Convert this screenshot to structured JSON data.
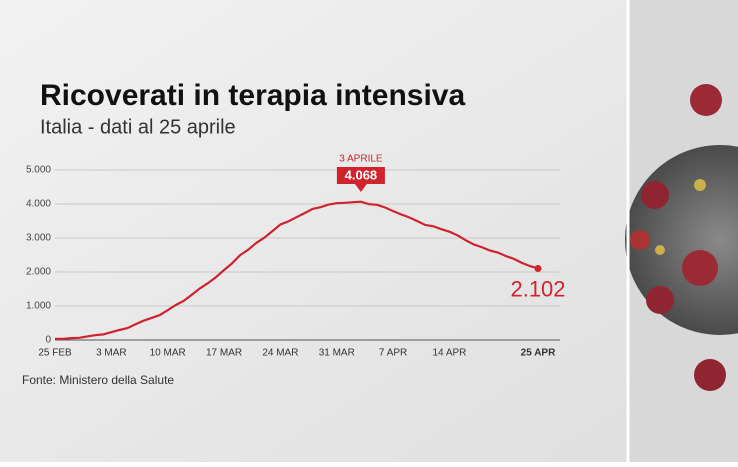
{
  "chart_data": {
    "type": "line",
    "title": "Ricoverati in terapia intensiva",
    "subtitle": "Italia - dati al 25 aprile",
    "source": "Fonte: Ministero della Salute",
    "annotation": "3 APRILE",
    "categories": [
      "25 FEB",
      null,
      null,
      null,
      null,
      null,
      null,
      "3 MAR",
      null,
      null,
      null,
      null,
      null,
      null,
      "10 MAR",
      null,
      null,
      null,
      null,
      null,
      null,
      "17 MAR",
      null,
      null,
      null,
      null,
      null,
      null,
      "24 MAR",
      null,
      null,
      null,
      null,
      null,
      null,
      "31 MAR",
      null,
      null,
      null,
      null,
      null,
      null,
      "7 APR",
      null,
      null,
      null,
      null,
      null,
      null,
      "14 APR",
      null,
      null,
      null,
      null,
      null,
      null,
      null,
      null,
      null,
      null,
      "25 APR"
    ],
    "values": [
      35,
      36,
      56,
      64,
      105,
      140,
      166,
      229,
      295,
      351,
      462,
      567,
      650,
      733,
      877,
      1028,
      1153,
      1328,
      1518,
      1672,
      1851,
      2060,
      2257,
      2498,
      2655,
      2857,
      3009,
      3204,
      3396,
      3489,
      3612,
      3732,
      3856,
      3906,
      3981,
      4023,
      4035,
      4053,
      4068,
      3994,
      3977,
      3898,
      3792,
      3693,
      3605,
      3497,
      3381,
      3343,
      3260,
      3186,
      3079,
      2936,
      2812,
      2733,
      2635,
      2573,
      2471,
      2384,
      2267,
      2173,
      2102
    ],
    "value_labels": [
      null,
      null,
      null,
      null,
      null,
      null,
      null,
      null,
      null,
      null,
      null,
      null,
      null,
      null,
      null,
      null,
      null,
      null,
      null,
      null,
      null,
      null,
      null,
      null,
      null,
      null,
      null,
      null,
      null,
      null,
      null,
      null,
      null,
      null,
      null,
      null,
      null,
      null,
      "4.068",
      null,
      null,
      null,
      null,
      null,
      null,
      null,
      null,
      null,
      null,
      null,
      null,
      null,
      null,
      null,
      null,
      null,
      null,
      null,
      null,
      null,
      "2.102"
    ],
    "color": "#d0232e",
    "ylim": [
      0,
      5000
    ],
    "yticks": [
      0,
      {
        "value": 1000,
        "label": "1.000"
      },
      {
        "value": 2000,
        "label": "2.000"
      },
      {
        "value": 3000,
        "label": "3.000"
      },
      {
        "value": 4000,
        "label": "4.000"
      },
      {
        "value": 5000,
        "label": "5.000"
      }
    ],
    "grid": true
  }
}
